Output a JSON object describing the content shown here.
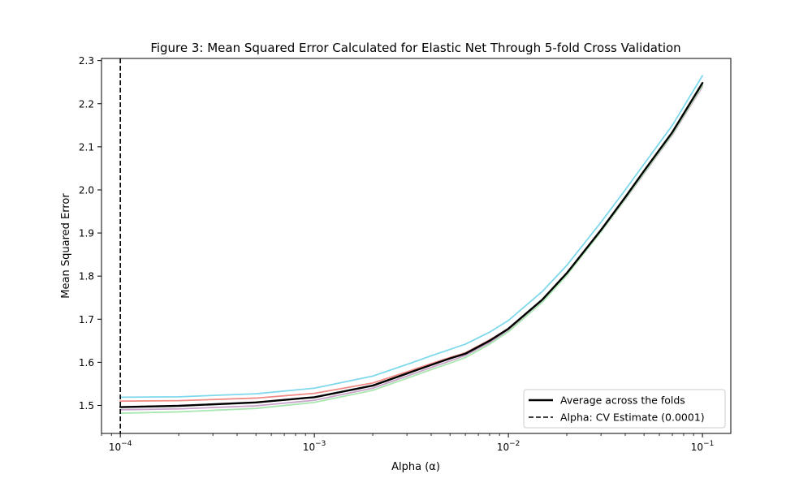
{
  "chart_data": {
    "type": "line",
    "title": "Figure 3: Mean Squared Error Calculated for Elastic Net Through 5-fold Cross Validation",
    "xlabel": "Alpha (α)",
    "ylabel": "Mean Squared Error",
    "xscale": "log",
    "xlim": [
      8e-05,
      0.14
    ],
    "ylim": [
      1.435,
      2.305
    ],
    "x_ticks": [
      {
        "value": 0.0001,
        "base": "10",
        "exp": "−4"
      },
      {
        "value": 0.001,
        "base": "10",
        "exp": "−3"
      },
      {
        "value": 0.01,
        "base": "10",
        "exp": "−2"
      },
      {
        "value": 0.1,
        "base": "10",
        "exp": "−1"
      }
    ],
    "y_ticks": [
      1.5,
      1.6,
      1.7,
      1.8,
      1.9,
      2.0,
      2.1,
      2.2,
      2.3
    ],
    "y_tick_labels": [
      "1.5",
      "1.6",
      "1.7",
      "1.8",
      "1.9",
      "2.0",
      "2.1",
      "2.2",
      "2.3"
    ],
    "grid": false,
    "x": [
      0.0001,
      0.0002,
      0.0005,
      0.001,
      0.002,
      0.003,
      0.004,
      0.005,
      0.006,
      0.008,
      0.01,
      0.015,
      0.02,
      0.03,
      0.04,
      0.05,
      0.07,
      0.1
    ],
    "series": [
      {
        "color": "#7fd8ec",
        "width": 1.8,
        "values": [
          1.519,
          1.52,
          1.527,
          1.54,
          1.568,
          1.595,
          1.615,
          1.63,
          1.642,
          1.67,
          1.697,
          1.765,
          1.825,
          1.925,
          2.0,
          2.06,
          2.15,
          2.265
        ]
      },
      {
        "color": "#f08a84",
        "width": 1.8,
        "values": [
          1.51,
          1.511,
          1.517,
          1.528,
          1.552,
          1.578,
          1.597,
          1.611,
          1.622,
          1.652,
          1.678,
          1.745,
          1.805,
          1.905,
          1.98,
          2.04,
          2.128,
          2.24
        ]
      },
      {
        "color": "#c9a2c9",
        "width": 1.8,
        "values": [
          1.49,
          1.492,
          1.499,
          1.512,
          1.54,
          1.568,
          1.588,
          1.603,
          1.616,
          1.646,
          1.674,
          1.742,
          1.803,
          1.903,
          1.978,
          2.038,
          2.128,
          2.24
        ]
      },
      {
        "color": "#a8e8b0",
        "width": 1.8,
        "values": [
          1.482,
          1.485,
          1.493,
          1.507,
          1.535,
          1.563,
          1.583,
          1.598,
          1.611,
          1.642,
          1.671,
          1.74,
          1.802,
          1.903,
          1.979,
          2.04,
          2.13,
          2.243
        ]
      },
      {
        "name": "Average across the folds",
        "color": "#000000",
        "width": 2.4,
        "values": [
          1.496,
          1.499,
          1.507,
          1.519,
          1.546,
          1.574,
          1.594,
          1.609,
          1.62,
          1.65,
          1.678,
          1.746,
          1.807,
          1.907,
          1.983,
          2.044,
          2.134,
          2.248
        ]
      }
    ],
    "vline": {
      "x": 0.0001,
      "style": "dashed",
      "color": "#000000",
      "label": "Alpha: CV Estimate (0.0001)"
    },
    "legend": {
      "placement": "lower-right",
      "entries": [
        {
          "label": "Average across the folds",
          "style": "solid"
        },
        {
          "label": "Alpha: CV Estimate (0.0001)",
          "style": "dashed"
        }
      ]
    }
  }
}
